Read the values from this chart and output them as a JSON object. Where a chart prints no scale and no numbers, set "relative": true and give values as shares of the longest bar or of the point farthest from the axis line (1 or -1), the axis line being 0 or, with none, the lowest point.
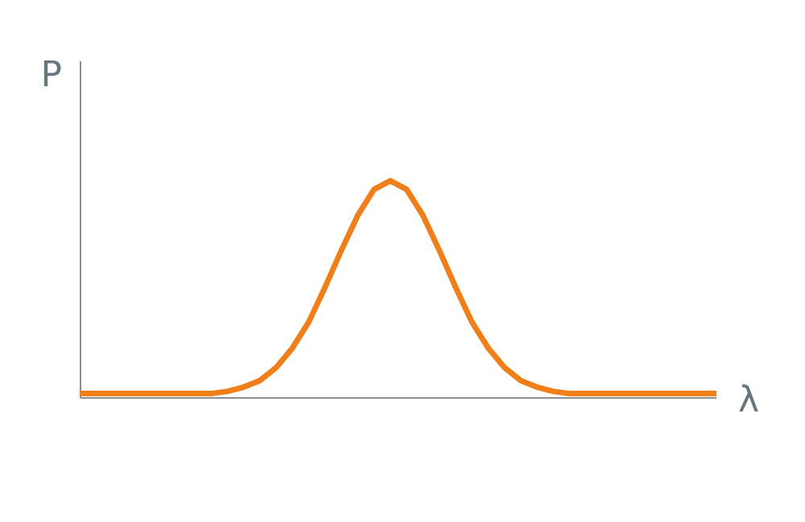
{
  "chart_data": {
    "type": "line",
    "xlabel": "λ",
    "ylabel": "P",
    "relative": true,
    "color": "#f07f1a",
    "marker": "none",
    "line_style": "solid",
    "categories": [
      null,
      null,
      null,
      null,
      null,
      null,
      null,
      null,
      null,
      null,
      null,
      null,
      null,
      null,
      null,
      null,
      null,
      null,
      null,
      null,
      null,
      null,
      null,
      null,
      null,
      null,
      null,
      null,
      null,
      null,
      null,
      null,
      null,
      null,
      null,
      null,
      null,
      null,
      null,
      null
    ],
    "values": [
      0.02,
      0.02,
      0.02,
      0.02,
      0.02,
      0.02,
      0.02,
      0.02,
      0.02,
      0.03,
      0.05,
      0.08,
      0.14,
      0.23,
      0.35,
      0.51,
      0.68,
      0.84,
      0.96,
      1,
      0.96,
      0.84,
      0.68,
      0.51,
      0.35,
      0.23,
      0.14,
      0.08,
      0.05,
      0.03,
      0.02,
      0.02,
      0.02,
      0.02,
      0.02,
      0.02,
      0.02,
      0.02,
      0.02,
      0.02
    ]
  }
}
